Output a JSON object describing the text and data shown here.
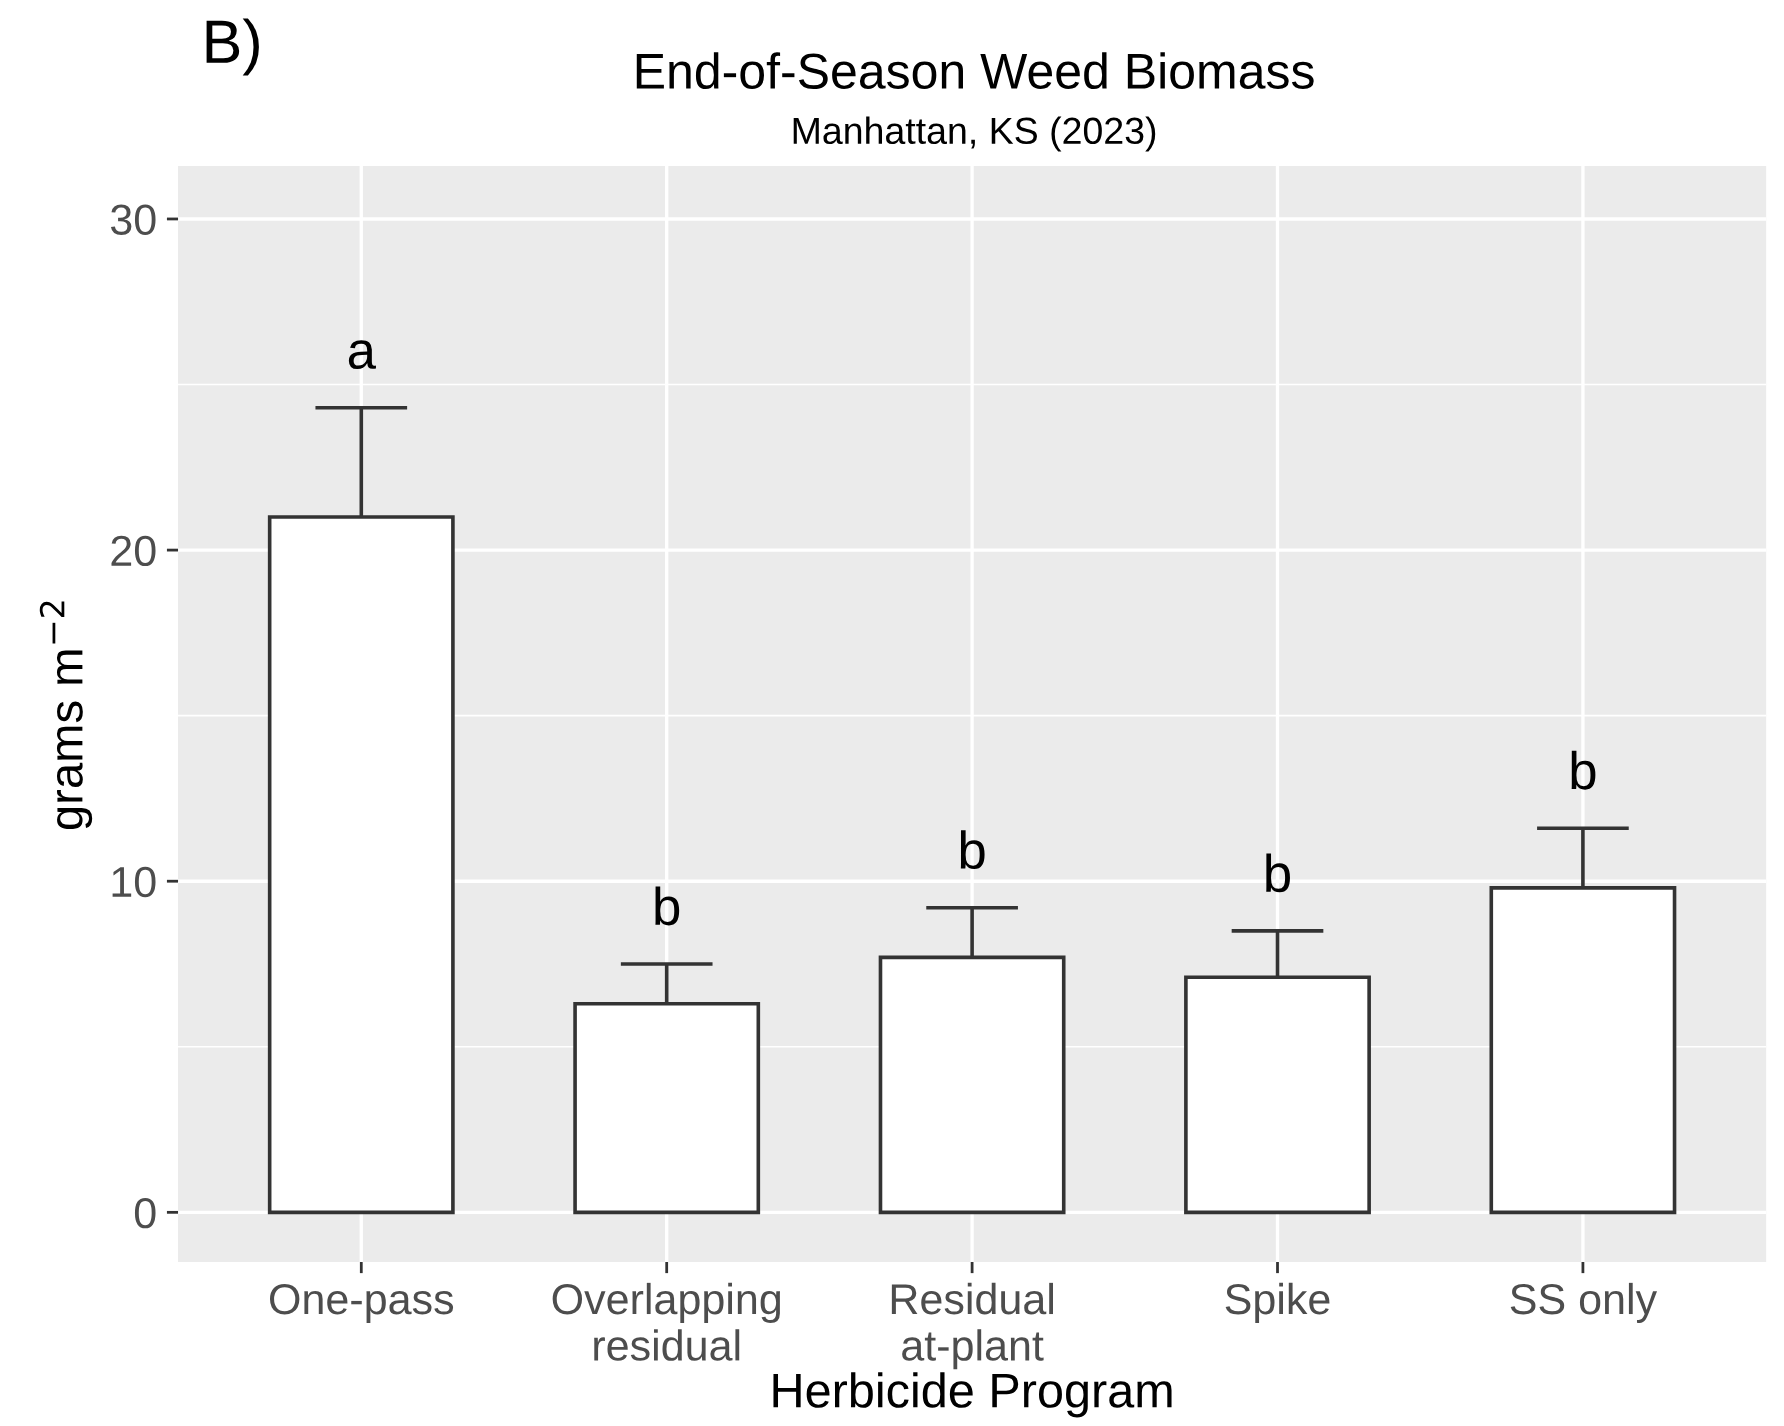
{
  "chart_data": {
    "type": "bar",
    "title": "End-of-Season Weed Biomass",
    "subtitle": "Manhattan, KS (2023)",
    "xlabel": "Herbicide Program",
    "ylabel": "grams m$^{−2}$",
    "categories": [
      "One-pass",
      "Overlapping\nresidual",
      "Residual\nat-plant",
      "Spike",
      "SS only"
    ],
    "values": [
      21.0,
      6.3,
      7.7,
      7.1,
      9.8
    ],
    "errors": [
      [
        21.0,
        24.3
      ],
      [
        6.3,
        7.5
      ],
      [
        7.7,
        9.2
      ],
      [
        7.1,
        8.5
      ],
      [
        9.8,
        11.6
      ]
    ],
    "color": "#ffffff",
    "ylim": [
      -1.5,
      31.6
    ],
    "yticks": [
      0,
      10,
      20,
      30
    ],
    "grid": true,
    "annotations": [
      "B)",
      "a",
      "b",
      "b",
      "b",
      "b"
    ]
  }
}
